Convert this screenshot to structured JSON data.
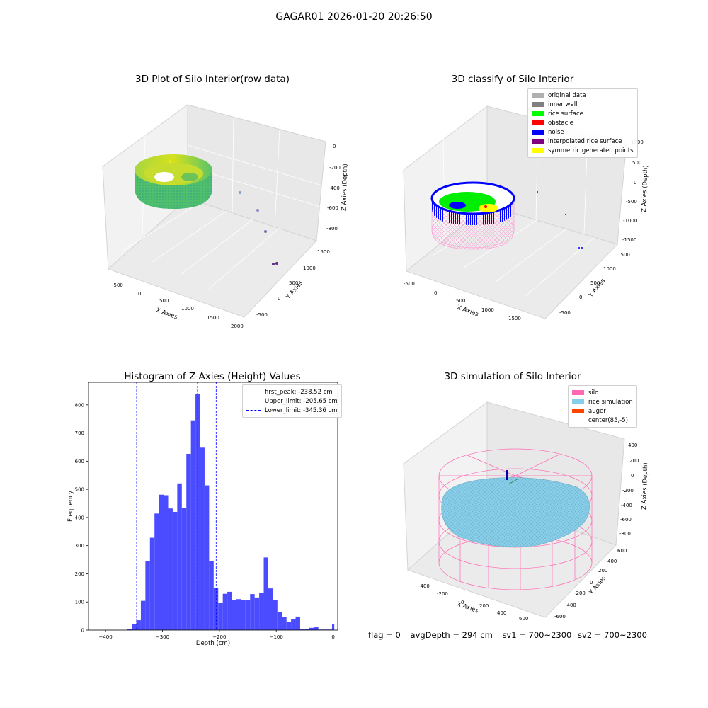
{
  "title": "GAGAR01 2026-01-20 20:26:50",
  "panels": {
    "raw": {
      "title": "3D Plot of Silo Interior(row data)",
      "xlabel": "X Axies",
      "ylabel": "Y Axies",
      "zlabel": "Z Axies (Depth)",
      "xticks": [
        "-500",
        "0",
        "500",
        "1000",
        "1500",
        "2000"
      ],
      "yticks": [
        "-500",
        "0",
        "500",
        "1000",
        "1500"
      ],
      "zticks": [
        "0",
        "-200",
        "-400",
        "-600",
        "-800"
      ]
    },
    "classify": {
      "title": "3D classify of Silo Interior",
      "xlabel": "X Axies",
      "ylabel": "Y Axies",
      "zlabel": "Z Axies (Depth)",
      "xticks": [
        "-500",
        "0",
        "500",
        "1000",
        "1500"
      ],
      "yticks": [
        "-500",
        "0",
        "500",
        "1000",
        "1500"
      ],
      "zticks": [
        "1000",
        "500",
        "0",
        "-500",
        "-1000",
        "-1500"
      ],
      "legend": [
        {
          "label": "original data",
          "color": "#b0b0b0"
        },
        {
          "label": "inner wall",
          "color": "#808080"
        },
        {
          "label": "rice surface",
          "color": "#00ff00"
        },
        {
          "label": "obstacle",
          "color": "#ff0000"
        },
        {
          "label": "noise",
          "color": "#0000ff"
        },
        {
          "label": "interpolated rice surface",
          "color": "#800080"
        },
        {
          "label": "symmetric generated points",
          "color": "#ffff00"
        }
      ]
    },
    "simulation": {
      "title": "3D simulation of Silo Interior",
      "xlabel": "X Axies",
      "ylabel": "Y Axies",
      "zlabel": "Z Axies (Depth)",
      "xticks": [
        "-400",
        "-200",
        "0",
        "200",
        "400",
        "600"
      ],
      "yticks": [
        "-600",
        "-400",
        "-200",
        "0",
        "200",
        "400",
        "600"
      ],
      "zticks": [
        "400",
        "200",
        "0",
        "-200",
        "-400",
        "-600",
        "-800"
      ],
      "legend": [
        {
          "label": "silo",
          "color": "#ff69b4"
        },
        {
          "label": "rice simulation",
          "color": "#87ceeb"
        },
        {
          "label": "auger",
          "color": "#ff4500"
        },
        {
          "label": "center(85,-5)",
          "color": "#ffffff"
        }
      ]
    }
  },
  "chart_data": {
    "type": "bar",
    "title": "Histogram of Z-Axies (Height) Values",
    "xlabel": "Depth (cm)",
    "ylabel": "Frequency",
    "xlim": [
      -430,
      8
    ],
    "ylim": [
      0,
      880
    ],
    "xticks": [
      -400,
      -300,
      -200,
      -100,
      0
    ],
    "yticks": [
      0,
      100,
      200,
      300,
      400,
      500,
      600,
      700,
      800
    ],
    "bin_edges": [
      -362,
      -354,
      -346,
      -338,
      -330,
      -322,
      -314,
      -306,
      -298,
      -290,
      -282,
      -274,
      -266,
      -258,
      -250,
      -242,
      -234,
      -226,
      -218,
      -210,
      -202,
      -194,
      -186,
      -178,
      -170,
      -162,
      -154,
      -146,
      -138,
      -130,
      -122,
      -114,
      -106,
      -98,
      -90,
      -82,
      -74,
      -66,
      -58,
      -50,
      -42,
      -34,
      -26,
      -18,
      -10,
      -2,
      2
    ],
    "counts": [
      3,
      22,
      35,
      104,
      246,
      328,
      414,
      481,
      479,
      432,
      420,
      521,
      434,
      626,
      745,
      838,
      648,
      514,
      246,
      151,
      96,
      129,
      136,
      108,
      110,
      106,
      108,
      128,
      116,
      132,
      258,
      148,
      106,
      63,
      46,
      30,
      40,
      48,
      5,
      5,
      8,
      10,
      2,
      2,
      2,
      20
    ],
    "vlines": [
      {
        "label": "first_peak: -238.52 cm",
        "x": -238.52,
        "color": "#ff0000"
      },
      {
        "label": "Upper_limit: -205.65 cm",
        "x": -205.65,
        "color": "#0000ff"
      },
      {
        "label": "Lower_limit: -345.36 cm",
        "x": -345.36,
        "color": "#0000ff"
      }
    ],
    "bar_color": "#4b4bff"
  },
  "status": {
    "flag": "flag = 0",
    "avg": "avgDepth = 294 cm",
    "sv1": "sv1 = 700~2300",
    "sv2": "sv2 = 700~2300"
  }
}
